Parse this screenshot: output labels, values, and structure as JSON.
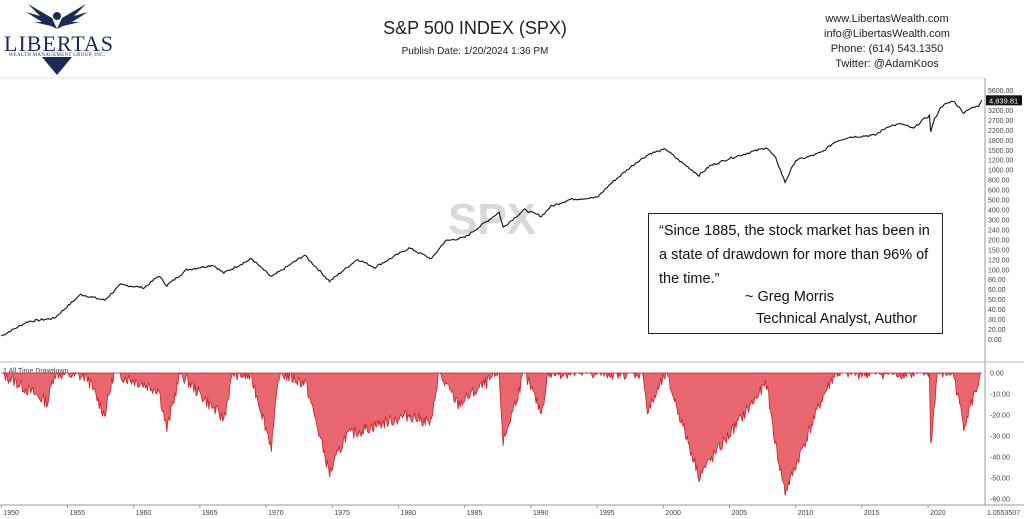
{
  "header": {
    "logo_text": "LIBERTAS",
    "logo_subtext": "WEALTH MANAGEMENT GROUP, INC.",
    "title": "S&P 500 INDEX (SPX)",
    "publish_date": "Publish Date: 1/20/2024 1:36 PM",
    "contact": {
      "website": "www.LibertasWealth.com",
      "email": "info@LibertasWealth.com",
      "phone": "Phone:  (614) 543.1350",
      "twitter": "Twitter:  @AdamKoos"
    }
  },
  "quote": {
    "text": "“Since 1885, the stock market has been in a state of drawdown for more than 96% of the time.”",
    "author": "~ Greg Morris",
    "role": "Technical Analyst, Author"
  },
  "colors": {
    "price_line": "#111111",
    "drawdown_fill": "#e8666e",
    "drawdown_line": "#cc1f2a",
    "last_price_badge": "#111111"
  },
  "chart_data": [
    {
      "type": "line",
      "watermark": "SPX",
      "y_scale": "log",
      "y_tick_labels": [
        "5600.00",
        "3900.00",
        "3200.00",
        "2700.00",
        "2200.00",
        "1800.00",
        "1500.00",
        "1200.00",
        "1000.00",
        "800.00",
        "600.00",
        "500.00",
        "400.00",
        "300.00",
        "240.00",
        "200.00",
        "150.00",
        "120.00",
        "100.00",
        "80.00",
        "60.00",
        "50.00",
        "40.00",
        "30.00",
        "20.00",
        "0.00"
      ],
      "last_value_label": "4,839.81",
      "x": [
        1950,
        1952,
        1954,
        1956,
        1957.8,
        1959,
        1960.8,
        1961.9,
        1962.5,
        1964,
        1966,
        1966.8,
        1968.9,
        1970.4,
        1972.9,
        1974.8,
        1976.9,
        1978.2,
        1980.8,
        1982.5,
        1983.5,
        1985,
        1987.6,
        1987.9,
        1989.5,
        1990.8,
        1991.5,
        1993,
        1995,
        1996,
        1997,
        1998,
        1999,
        2000.2,
        2001,
        2002.7,
        2003.5,
        2005,
        2007.8,
        2008.5,
        2009.2,
        2010,
        2011,
        2012,
        2013,
        2014,
        2015,
        2016,
        2017,
        2018,
        2018.9,
        2019.5,
        2020.1,
        2020.2,
        2020.5,
        2021,
        2021.9,
        2022.7,
        2023,
        2023.8,
        2024.05
      ],
      "values": [
        17,
        24,
        26,
        46,
        40,
        58,
        54,
        72,
        57,
        83,
        93,
        77,
        108,
        70,
        118,
        63,
        107,
        88,
        140,
        108,
        165,
        180,
        330,
        230,
        350,
        300,
        380,
        450,
        470,
        650,
        850,
        1100,
        1350,
        1500,
        1200,
        800,
        1000,
        1200,
        1560,
        1200,
        680,
        1150,
        1250,
        1400,
        1800,
        2000,
        2050,
        2100,
        2600,
        2750,
        2450,
        2950,
        3350,
        2300,
        3100,
        4200,
        4790,
        3580,
        3900,
        4200,
        4839.81
      ]
    },
    {
      "type": "area",
      "label": "1 All Time Drawdown",
      "y_tick_labels": [
        "0.00",
        "-10.00",
        "-20.00",
        "-30.00",
        "-40.00",
        "-50.00",
        "-60.00"
      ],
      "ylim": [
        -60,
        0
      ],
      "x": [
        1950,
        1953.5,
        1954,
        1956.5,
        1957.8,
        1958.5,
        1961.9,
        1962.5,
        1963.5,
        1966.8,
        1967.5,
        1968.9,
        1970.4,
        1971,
        1973,
        1974.8,
        1976,
        1978.2,
        1980.8,
        1982.5,
        1983,
        1984.5,
        1987.6,
        1987.9,
        1989.5,
        1990.8,
        1991.3,
        1998.5,
        1998.8,
        2000.2,
        2002.7,
        2007.8,
        2008.5,
        2009.2,
        2012,
        2013,
        2020.1,
        2020.2,
        2020.7,
        2021.9,
        2022.7,
        2024.05
      ],
      "values": [
        0,
        -14,
        0,
        -2,
        -20,
        0,
        -8,
        -27,
        0,
        -22,
        0,
        -2,
        -35,
        0,
        -5,
        -48,
        -30,
        -25,
        -20,
        -24,
        0,
        -15,
        0,
        -33,
        0,
        -19,
        0,
        0,
        -19,
        0,
        -49,
        -5,
        -35,
        -57,
        -12,
        0,
        0,
        -35,
        0,
        0,
        -25,
        0
      ]
    }
  ],
  "x_axis_labels": [
    "1950",
    "1955",
    "1960",
    "1965",
    "1970",
    "1975",
    "1980",
    "1985",
    "1990",
    "1995",
    "2000",
    "2005",
    "2010",
    "2015",
    "2020"
  ],
  "x_axis_edge_label": "1.0553507"
}
